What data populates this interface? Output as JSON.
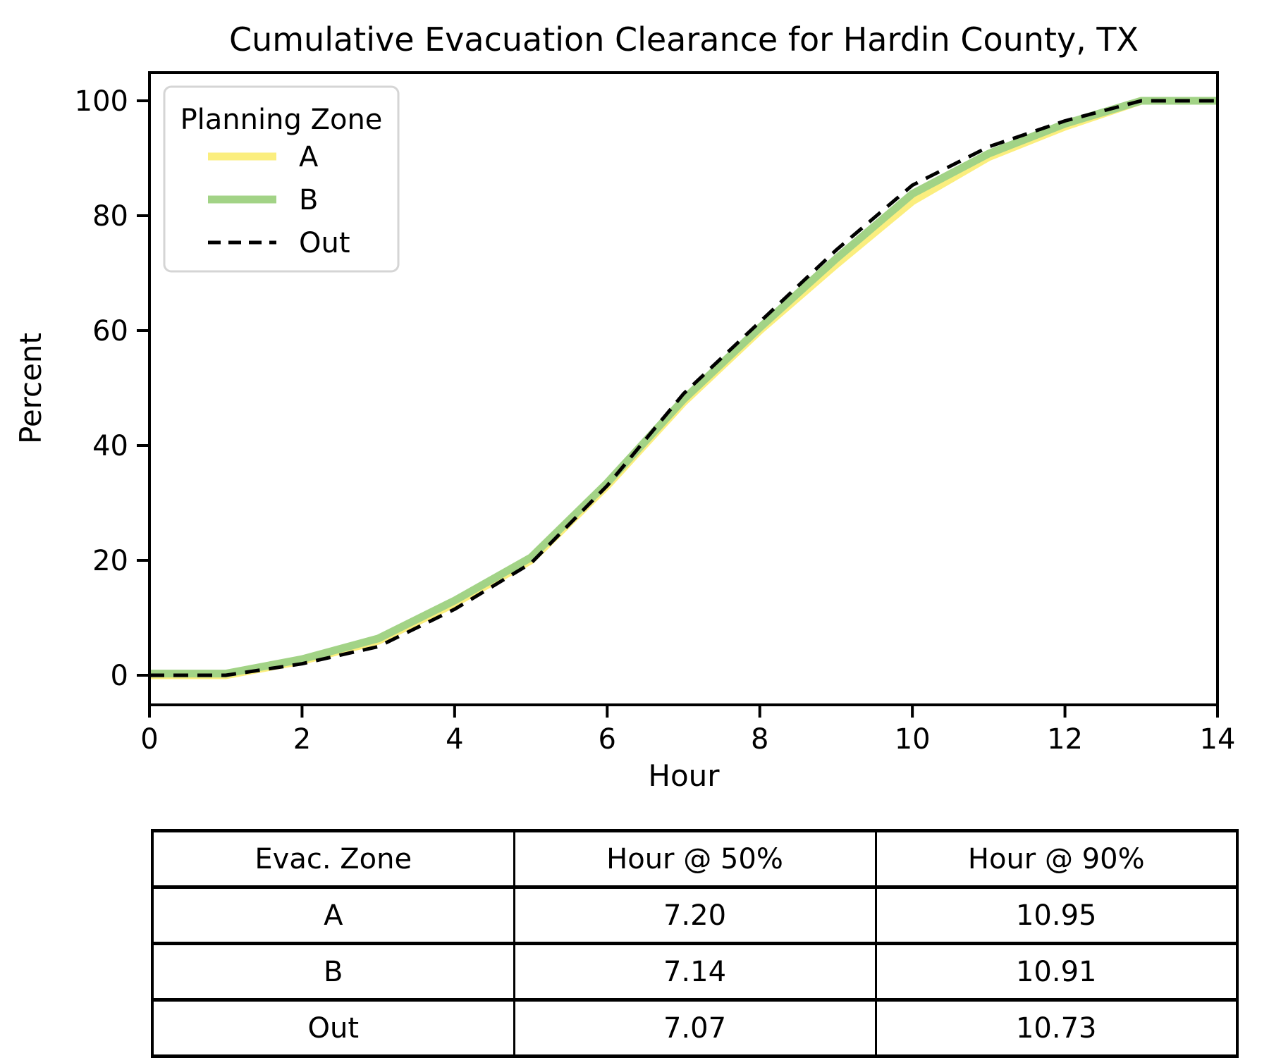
{
  "chart_data": {
    "type": "line",
    "title": "Cumulative Evacuation Clearance for Hardin County, TX",
    "xlabel": "Hour",
    "ylabel": "Percent",
    "xlim": [
      0,
      14
    ],
    "ylim": [
      0,
      100
    ],
    "x_ticks": [
      0,
      2,
      4,
      6,
      8,
      10,
      12,
      14
    ],
    "y_ticks": [
      0,
      20,
      40,
      60,
      80,
      100
    ],
    "grid": false,
    "x": [
      0,
      1,
      2,
      3,
      4,
      5,
      6,
      7,
      8,
      9,
      10,
      11,
      12,
      13,
      14
    ],
    "series": [
      {
        "name": "A",
        "color": "#FBEE7E",
        "style": "solid",
        "width": 11,
        "values": [
          0,
          0,
          2.5,
          6,
          12.5,
          20,
          33,
          47.5,
          60,
          71.5,
          82.5,
          90.2,
          95.5,
          100,
          100
        ]
      },
      {
        "name": "B",
        "color": "#A2D386",
        "style": "solid",
        "width": 11,
        "values": [
          0.3,
          0.3,
          2.8,
          6.4,
          13,
          20.5,
          33.5,
          48,
          60.5,
          72.5,
          83.8,
          90.8,
          96,
          100,
          100
        ]
      },
      {
        "name": "Out",
        "color": "#000000",
        "style": "dashed",
        "width": 5,
        "values": [
          0,
          0,
          2,
          5,
          11.5,
          19.5,
          33,
          49,
          61.5,
          74,
          85.3,
          92,
          96.5,
          100,
          100
        ]
      }
    ],
    "legend": {
      "title": "Planning Zone",
      "position": "upper left"
    }
  },
  "table": {
    "headers": [
      "Evac. Zone",
      "Hour @ 50%",
      "Hour @ 90%"
    ],
    "rows": [
      [
        "A",
        "7.20",
        "10.95"
      ],
      [
        "B",
        "7.14",
        "10.91"
      ],
      [
        "Out",
        "7.07",
        "10.73"
      ]
    ]
  },
  "colors": {
    "zone_a": "#FBEE7E",
    "zone_b": "#A2D386",
    "out_line": "#000000",
    "legend_border": "#d5d5d5",
    "spine": "#000000"
  }
}
